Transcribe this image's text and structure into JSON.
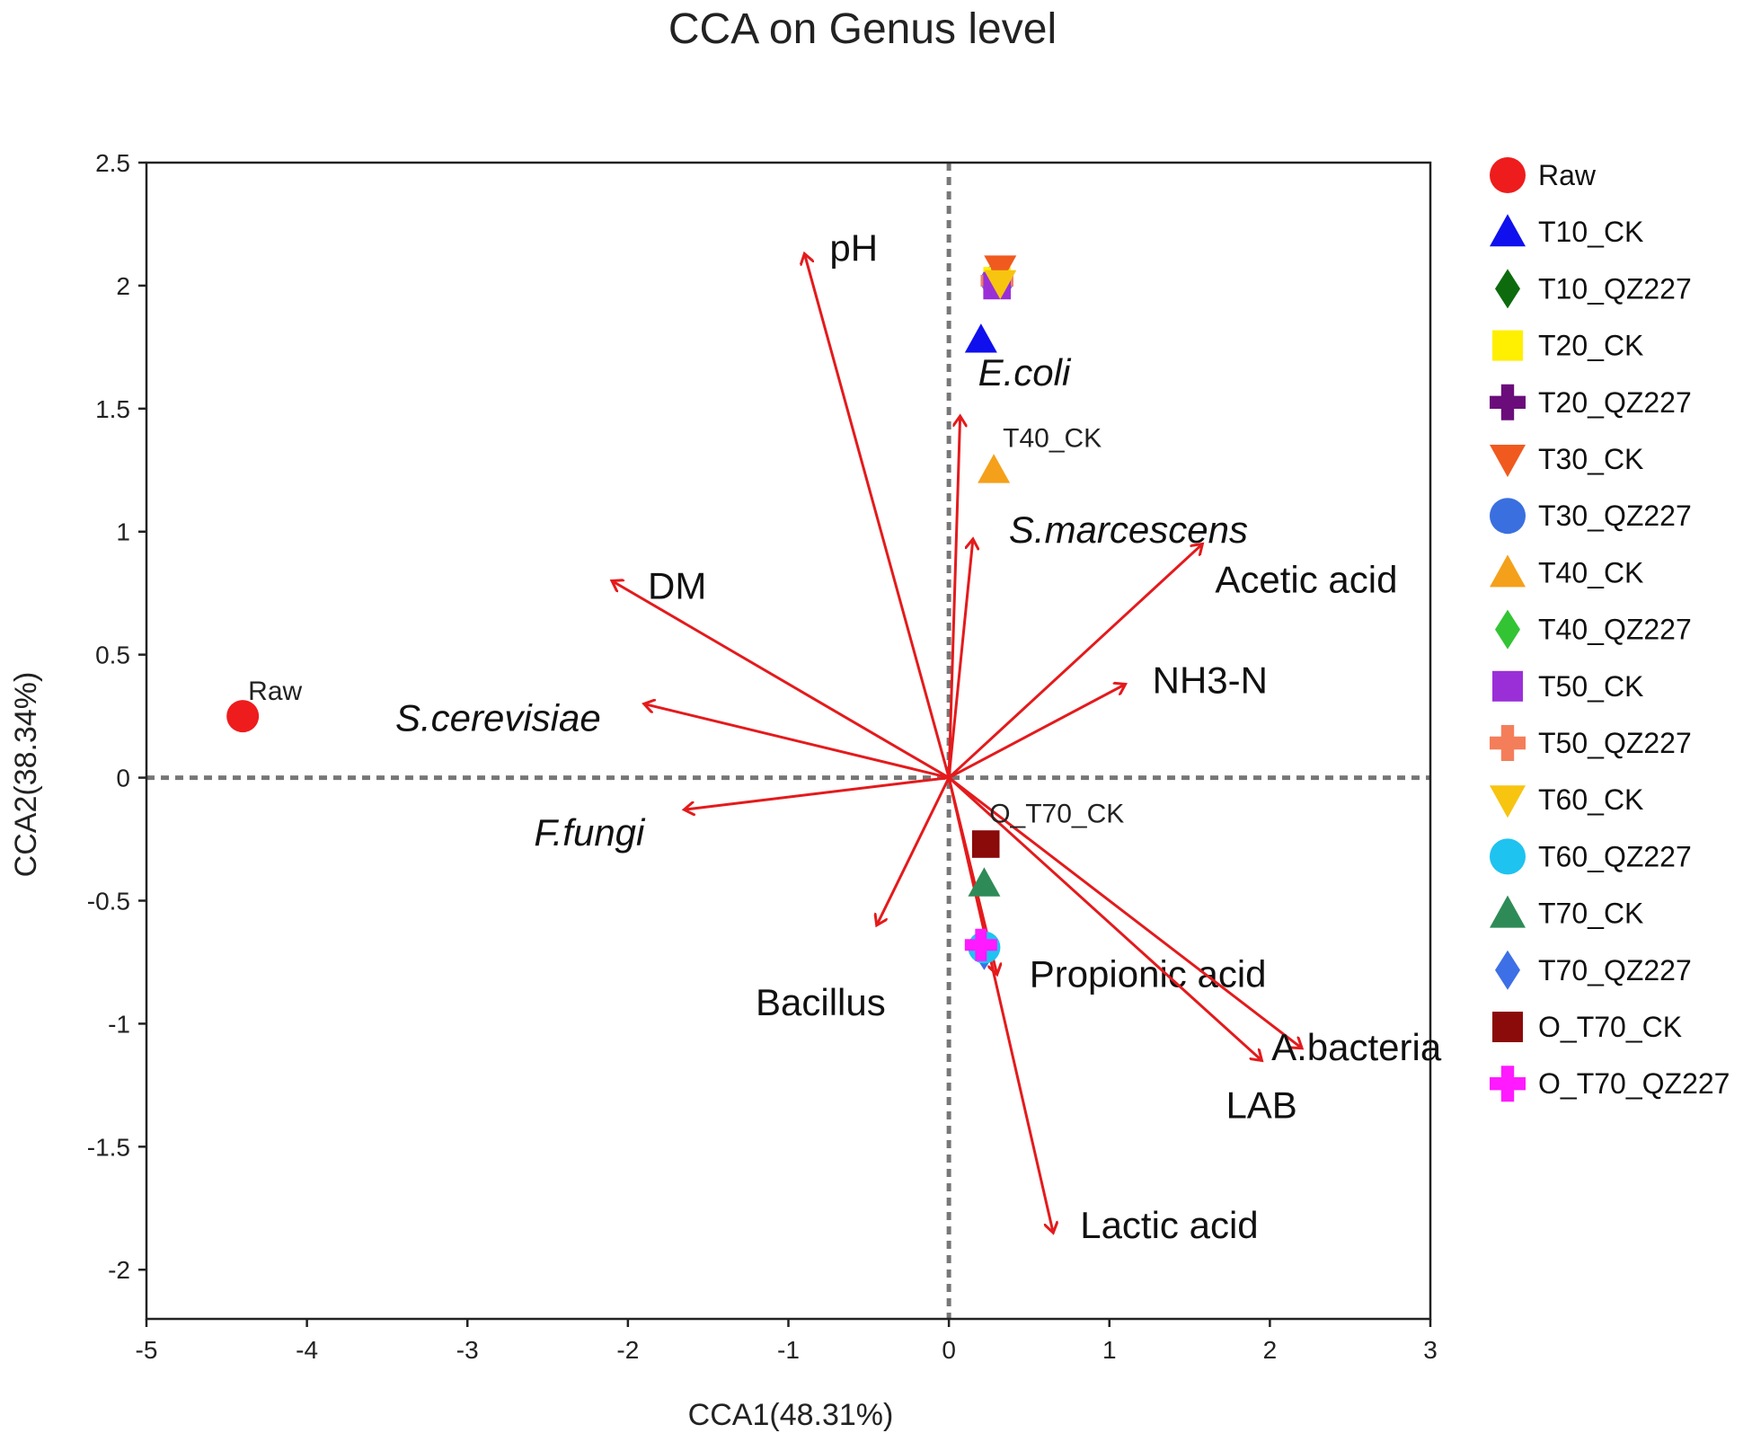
{
  "chart_data": {
    "type": "scatter",
    "title": "CCA on Genus level",
    "xlabel": "CCA1(48.31%)",
    "ylabel": "CCA2(38.34%)",
    "xlim": [
      -5,
      3
    ],
    "ylim": [
      -2.2,
      2.5
    ],
    "xticks": [
      "-5",
      "-4",
      "-3",
      "-2",
      "-1",
      "0",
      "1",
      "2",
      "3"
    ],
    "yticks": [
      "-2",
      "-1.5",
      "-1",
      "-0.5",
      "0",
      "0.5",
      "1",
      "1.5",
      "2",
      "2.5"
    ],
    "xtick_values": [
      -5,
      -4,
      -3,
      -2,
      -1,
      0,
      1,
      2,
      3
    ],
    "ytick_values": [
      -2,
      -1.5,
      -1,
      -0.5,
      0,
      0.5,
      1,
      1.5,
      2,
      2.5
    ],
    "legend_position": "right",
    "series": [
      {
        "name": "Raw",
        "marker": "circle",
        "color": "#ee1c1c",
        "x": -4.4,
        "y": 0.25,
        "label": "Raw"
      },
      {
        "name": "T10_CK",
        "marker": "triangle",
        "color": "#1010ee",
        "x": 0.2,
        "y": 1.78
      },
      {
        "name": "T10_QZ227",
        "marker": "diamond",
        "color": "#0d6b0d",
        "x": 0.3,
        "y": 2.02
      },
      {
        "name": "T20_CK",
        "marker": "square",
        "color": "#ffef00",
        "x": 0.3,
        "y": 2.02
      },
      {
        "name": "T20_QZ227",
        "marker": "cross",
        "color": "#6a0d7a",
        "x": 0.3,
        "y": 2.02
      },
      {
        "name": "T30_CK",
        "marker": "triangle-down",
        "color": "#f05a1e",
        "x": 0.32,
        "y": 2.07
      },
      {
        "name": "T30_QZ227",
        "marker": "circle",
        "color": "#3a6fe0",
        "x": 0.3,
        "y": 2.02
      },
      {
        "name": "T40_CK",
        "marker": "triangle",
        "color": "#f5a01a",
        "x": 0.28,
        "y": 1.25,
        "label": "T40_CK"
      },
      {
        "name": "T40_QZ227",
        "marker": "diamond",
        "color": "#33c433",
        "x": 0.3,
        "y": 2.02
      },
      {
        "name": "T50_CK",
        "marker": "square",
        "color": "#9a2fd8",
        "x": 0.3,
        "y": 2.0
      },
      {
        "name": "T50_QZ227",
        "marker": "cross",
        "color": "#f47e5a",
        "x": 0.3,
        "y": 2.02
      },
      {
        "name": "T60_CK",
        "marker": "triangle-down",
        "color": "#f7c410",
        "x": 0.32,
        "y": 2.01
      },
      {
        "name": "T60_QZ227",
        "marker": "circle",
        "color": "#1ec3f0",
        "x": 0.22,
        "y": -0.69
      },
      {
        "name": "T70_CK",
        "marker": "triangle",
        "color": "#2e8b57",
        "x": 0.22,
        "y": -0.43
      },
      {
        "name": "T70_QZ227",
        "marker": "diamond",
        "color": "#3d6fe6",
        "x": 0.22,
        "y": -0.71
      },
      {
        "name": "O_T70_CK",
        "marker": "square",
        "color": "#8b0a0a",
        "x": 0.23,
        "y": -0.27,
        "label": "O_T70_CK"
      },
      {
        "name": "O_T70_QZ227",
        "marker": "cross",
        "color": "#ff1aff",
        "x": 0.2,
        "y": -0.68
      }
    ],
    "vectors": [
      {
        "name": "pH",
        "x": -0.9,
        "y": 2.13,
        "italic": false
      },
      {
        "name": "E.coli",
        "x": 0.07,
        "y": 1.47,
        "italic": true
      },
      {
        "name": "S.marcescens",
        "x": 0.15,
        "y": 0.97,
        "italic": true
      },
      {
        "name": "DM",
        "x": -2.1,
        "y": 0.8,
        "italic": false
      },
      {
        "name": "Acetic acid",
        "x": 1.58,
        "y": 0.95,
        "italic": false
      },
      {
        "name": "NH3-N",
        "x": 1.1,
        "y": 0.38,
        "italic": false
      },
      {
        "name": "S.cerevisiae",
        "x": -1.9,
        "y": 0.3,
        "italic": true
      },
      {
        "name": "F.fungi",
        "x": -1.65,
        "y": -0.13,
        "italic": true
      },
      {
        "name": "Bacillus",
        "x": -0.45,
        "y": -0.6,
        "italic": false
      },
      {
        "name": "Propionic acid",
        "x": 0.3,
        "y": -0.8,
        "italic": false
      },
      {
        "name": "A.bacteria",
        "x": 2.2,
        "y": -1.1,
        "italic": false
      },
      {
        "name": "LAB",
        "x": 1.95,
        "y": -1.15,
        "italic": false
      },
      {
        "name": "Lactic acid",
        "x": 0.65,
        "y": -1.85,
        "italic": false
      }
    ]
  }
}
